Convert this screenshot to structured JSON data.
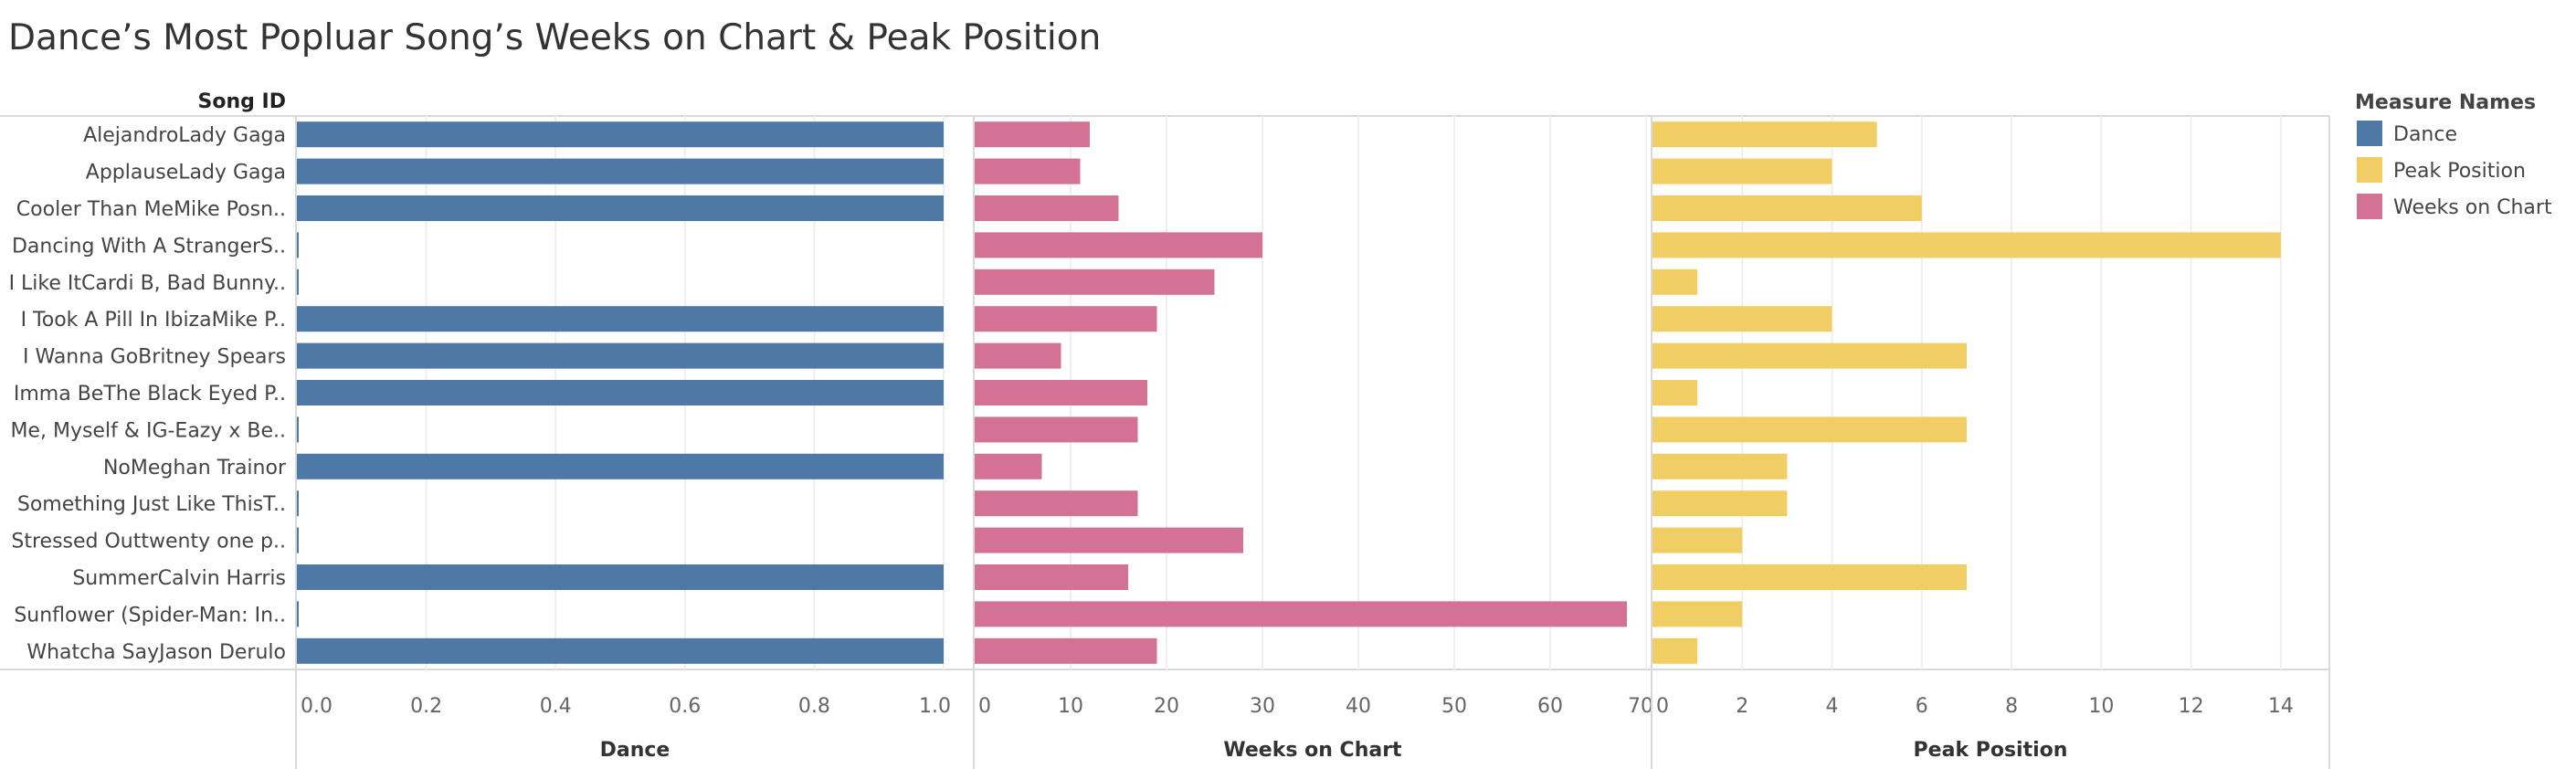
{
  "chart_data": {
    "type": "bar",
    "title": "Dance’s Most Popluar Song’s Weeks on Chart & Peak Position",
    "row_header": "Song ID",
    "categories": [
      "AlejandroLady Gaga",
      "ApplauseLady Gaga",
      "Cooler Than MeMike Posn..",
      "Dancing With A StrangerS..",
      "I Like ItCardi B, Bad Bunny..",
      "I Took A Pill In IbizaMike P..",
      "I Wanna GoBritney Spears",
      "Imma BeThe Black Eyed P..",
      "Me, Myself & IG-Eazy x Be..",
      "NoMeghan Trainor",
      "Something Just Like ThisT..",
      "Stressed Outtwenty one p..",
      "SummerCalvin Harris",
      "Sunflower (Spider-Man: In..",
      "Whatcha SayJason Derulo"
    ],
    "series": [
      {
        "name": "Dance",
        "color": "#4e79a7",
        "xlabel": "Dance",
        "xlim": [
          0,
          1.0
        ],
        "ticks": [
          "0.0",
          "0.2",
          "0.4",
          "0.6",
          "0.8",
          "1.0"
        ],
        "tick_values": [
          0,
          0.2,
          0.4,
          0.6,
          0.8,
          1.0
        ],
        "values": [
          1,
          1,
          1,
          0,
          0,
          1,
          1,
          1,
          0,
          1,
          0,
          0,
          1,
          0,
          1
        ]
      },
      {
        "name": "Weeks on Chart",
        "color": "#d37295",
        "xlabel": "Weeks on Chart",
        "xlim": [
          0,
          70
        ],
        "ticks": [
          "0",
          "10",
          "20",
          "30",
          "40",
          "50",
          "60",
          "70"
        ],
        "tick_values": [
          0,
          10,
          20,
          30,
          40,
          50,
          60,
          70
        ],
        "values": [
          12,
          11,
          15,
          30,
          25,
          19,
          9,
          18,
          17,
          7,
          17,
          28,
          16,
          68,
          19
        ]
      },
      {
        "name": "Peak Position",
        "color": "#f1ce63",
        "xlabel": "Peak Position",
        "xlim": [
          0,
          15
        ],
        "ticks": [
          "0",
          "2",
          "4",
          "6",
          "8",
          "10",
          "12",
          "14"
        ],
        "tick_values": [
          0,
          2,
          4,
          6,
          8,
          10,
          12,
          14
        ],
        "values": [
          5,
          4,
          6,
          14,
          1,
          4,
          7,
          1,
          7,
          3,
          3,
          2,
          7,
          2,
          1
        ]
      }
    ],
    "legend": {
      "title": "Measure Names",
      "position": "right",
      "items": [
        {
          "name": "Dance",
          "color": "#4e79a7"
        },
        {
          "name": "Peak Position",
          "color": "#f1ce63"
        },
        {
          "name": "Weeks on Chart",
          "color": "#d37295"
        }
      ]
    },
    "grid": true
  }
}
